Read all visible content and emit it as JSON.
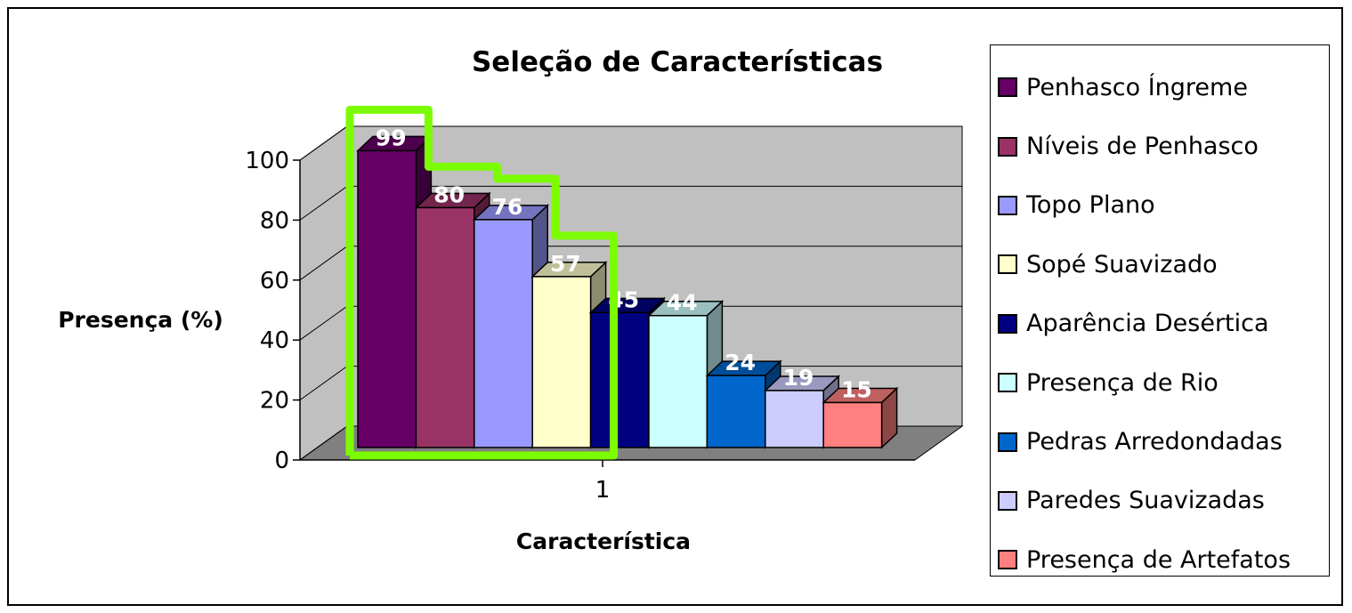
{
  "chart_data": {
    "type": "bar",
    "title": "Seleção de Características",
    "xlabel": "Característica",
    "ylabel": "Presença (%)",
    "categories": [
      "1"
    ],
    "ylim": [
      0,
      100
    ],
    "yticks": [
      "0",
      "20",
      "40",
      "60",
      "80",
      "100"
    ],
    "grid": true,
    "legend_position": "right",
    "highlight": {
      "series_count": 4,
      "color": "#7CFC00"
    },
    "series": [
      {
        "name": "Penhasco Íngreme",
        "values": [
          99
        ],
        "label": "99",
        "color": "#660066"
      },
      {
        "name": "Níveis de Penhasco",
        "values": [
          80
        ],
        "label": "80",
        "color": "#993366"
      },
      {
        "name": "Topo Plano",
        "values": [
          76
        ],
        "label": "76",
        "color": "#9999FF"
      },
      {
        "name": "Sopé Suavizado",
        "values": [
          57
        ],
        "label": "57",
        "color": "#FFFFCC"
      },
      {
        "name": "Aparência Desértica",
        "values": [
          45
        ],
        "label": "45",
        "color": "#000080"
      },
      {
        "name": "Presença de Rio",
        "values": [
          44
        ],
        "label": "44",
        "color": "#CCFFFF"
      },
      {
        "name": "Pedras Arredondadas",
        "values": [
          24
        ],
        "label": "24",
        "color": "#0066CC"
      },
      {
        "name": "Paredes Suavizadas",
        "values": [
          19
        ],
        "label": "19",
        "color": "#CCCCFF"
      },
      {
        "name": "Presença de Artefatos",
        "values": [
          15
        ],
        "label": "15",
        "color": "#FF8080"
      }
    ]
  }
}
